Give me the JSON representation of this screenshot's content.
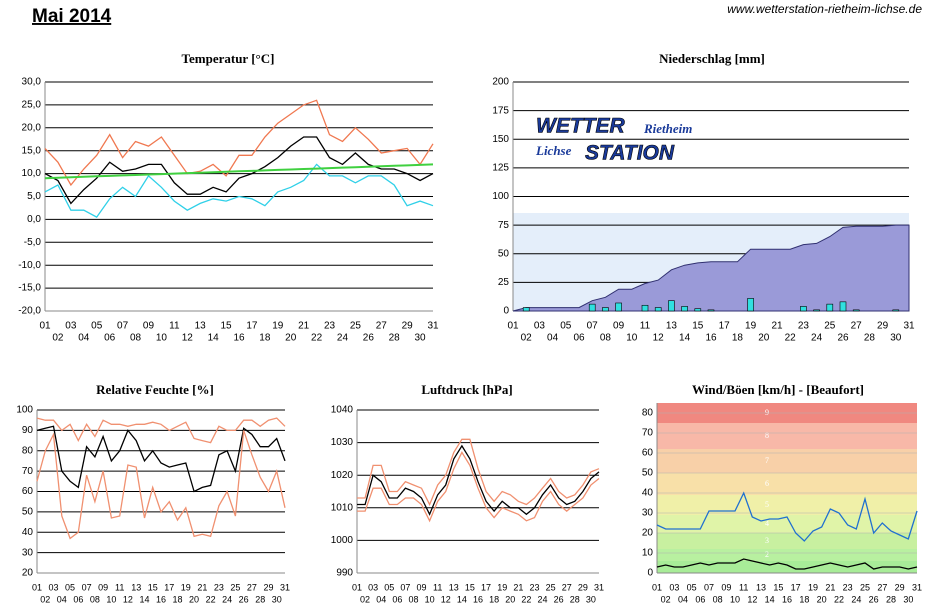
{
  "header": {
    "title": "Mai 2014",
    "url": "www.wetterstation-rietheim-lichse.de"
  },
  "logo": {
    "w1": "WETTER",
    "w2": "Rietheim",
    "w3": "Lichse",
    "w4": "STATION"
  },
  "chart_data": [
    {
      "type": "line",
      "title": "Temperatur [°C]",
      "categories": [
        "01",
        "02",
        "03",
        "04",
        "05",
        "06",
        "07",
        "08",
        "09",
        "10",
        "11",
        "12",
        "13",
        "14",
        "15",
        "16",
        "17",
        "18",
        "19",
        "20",
        "21",
        "22",
        "23",
        "24",
        "25",
        "26",
        "27",
        "28",
        "29",
        "30",
        "31"
      ],
      "ylim": [
        -20,
        30
      ],
      "yticks": [
        {
          "value": -20,
          "label": "-20,0"
        },
        {
          "value": -15,
          "label": "-15,0"
        },
        {
          "value": -10,
          "label": "-10,0"
        },
        {
          "value": -5,
          "label": "-5,0"
        },
        {
          "value": 0,
          "label": "0,0"
        },
        {
          "value": 5,
          "label": "5,0"
        },
        {
          "value": 10,
          "label": "10,0"
        },
        {
          "value": 15,
          "label": "15,0"
        },
        {
          "value": 20,
          "label": "20,0"
        },
        {
          "value": 25,
          "label": "25,0"
        },
        {
          "value": 30,
          "label": "30,0"
        }
      ],
      "grid": true,
      "series": [
        {
          "color": "#f07850",
          "values": [
            15.5,
            12.5,
            7.5,
            11,
            14,
            18.5,
            13.5,
            17,
            16,
            18,
            14,
            10,
            10.5,
            12,
            9.5,
            14,
            14,
            18,
            21,
            23,
            25,
            26,
            18.5,
            17,
            20,
            17.5,
            14.5,
            15,
            15.5,
            12,
            16.5
          ]
        },
        {
          "color": "#000000",
          "values": [
            10,
            8.5,
            3.5,
            6.5,
            9,
            12.5,
            10.5,
            11,
            12,
            12,
            8,
            5.5,
            5.5,
            7,
            6,
            9,
            10,
            11.5,
            13.5,
            16,
            18,
            18,
            13.5,
            12,
            14.5,
            12,
            11,
            11,
            10,
            8.5,
            10
          ]
        },
        {
          "color": "#30d0e8",
          "values": [
            6,
            7.5,
            2,
            2,
            0.5,
            4.5,
            7,
            5,
            9.5,
            7,
            4,
            2,
            3.5,
            4.5,
            4,
            5,
            4.5,
            3,
            6,
            7,
            8.5,
            12,
            9.5,
            9.5,
            8,
            9.5,
            9.5,
            7.5,
            3,
            4,
            3
          ]
        },
        {
          "color": "#40d040",
          "values": [
            9,
            9.1,
            9.2,
            9.3,
            9.4,
            9.5,
            9.6,
            9.7,
            9.8,
            9.9,
            10,
            10.1,
            10.2,
            10.3,
            10.4,
            10.5,
            10.6,
            10.7,
            10.8,
            10.9,
            11,
            11.1,
            11.2,
            11.3,
            11.4,
            11.5,
            11.6,
            11.7,
            11.8,
            11.9,
            12
          ]
        }
      ]
    },
    {
      "type": "bar",
      "title": "Niederschlag [mm]",
      "categories": [
        "01",
        "02",
        "03",
        "04",
        "05",
        "06",
        "07",
        "08",
        "09",
        "10",
        "11",
        "12",
        "13",
        "14",
        "15",
        "16",
        "17",
        "18",
        "19",
        "20",
        "21",
        "22",
        "23",
        "24",
        "25",
        "26",
        "27",
        "28",
        "29",
        "30",
        "31"
      ],
      "ylim": [
        0,
        200
      ],
      "yticks": [
        0,
        25,
        50,
        75,
        100,
        125,
        150,
        175,
        200
      ],
      "grid": true,
      "color": "#30e0e0",
      "area_color": "#9a9ad8",
      "values": [
        0,
        3,
        0,
        0,
        0,
        0,
        6,
        3,
        7,
        0,
        5,
        3,
        9,
        4,
        2,
        1,
        0,
        0,
        11,
        0,
        0,
        0,
        4,
        1,
        6,
        8,
        1,
        0,
        0,
        1,
        0
      ]
    },
    {
      "type": "line",
      "title": "Relative Feuchte [%]",
      "categories": [
        "01",
        "02",
        "03",
        "04",
        "05",
        "06",
        "07",
        "08",
        "09",
        "10",
        "11",
        "12",
        "13",
        "14",
        "15",
        "16",
        "17",
        "18",
        "19",
        "20",
        "21",
        "22",
        "23",
        "24",
        "25",
        "26",
        "27",
        "28",
        "29",
        "30",
        "31"
      ],
      "ylim": [
        20,
        100
      ],
      "yticks": [
        20,
        30,
        40,
        50,
        60,
        70,
        80,
        90,
        100
      ],
      "grid": true,
      "series": [
        {
          "color": "#000000",
          "values": [
            90,
            91,
            92,
            70,
            65,
            62,
            82,
            77,
            87,
            75,
            80,
            90,
            85,
            75,
            80,
            74,
            72,
            73,
            74,
            60,
            62,
            63,
            78,
            80,
            70,
            91,
            88,
            82,
            82,
            86,
            75
          ]
        },
        {
          "color": "#f09070",
          "values": [
            96,
            95,
            95,
            90,
            93,
            85,
            93,
            87,
            95,
            93,
            93,
            92,
            93,
            93,
            94,
            93,
            90,
            92,
            94,
            86,
            85,
            84,
            92,
            90,
            90,
            95,
            95,
            92,
            95,
            96,
            92
          ]
        },
        {
          "color": "#f09070",
          "values": [
            65,
            80,
            88,
            48,
            37,
            40,
            68,
            55,
            70,
            47,
            48,
            73,
            72,
            47,
            62,
            50,
            55,
            46,
            52,
            38,
            39,
            38,
            53,
            60,
            48,
            90,
            78,
            67,
            60,
            70,
            52
          ]
        }
      ]
    },
    {
      "type": "line",
      "title": "Luftdruck [hPa]",
      "categories": [
        "01",
        "02",
        "03",
        "04",
        "05",
        "06",
        "07",
        "08",
        "09",
        "10",
        "11",
        "12",
        "13",
        "14",
        "15",
        "16",
        "17",
        "18",
        "19",
        "20",
        "21",
        "22",
        "23",
        "24",
        "25",
        "26",
        "27",
        "28",
        "29",
        "30",
        "31"
      ],
      "ylim": [
        990,
        1040
      ],
      "yticks": [
        990,
        1000,
        1010,
        1020,
        1030,
        1040
      ],
      "grid": true,
      "series": [
        {
          "color": "#f09070",
          "values": [
            1013,
            1013,
            1023,
            1023,
            1015,
            1015,
            1018,
            1017,
            1016,
            1011,
            1017,
            1020,
            1027,
            1031,
            1031,
            1022,
            1015,
            1012,
            1015,
            1014,
            1012,
            1011,
            1013,
            1016,
            1019,
            1015,
            1013,
            1014,
            1017,
            1021,
            1022
          ]
        },
        {
          "color": "#f09070",
          "values": [
            1009,
            1009,
            1016,
            1016,
            1011,
            1011,
            1013,
            1013,
            1011,
            1006,
            1012,
            1015,
            1022,
            1027,
            1023,
            1016,
            1010,
            1007,
            1010,
            1009,
            1008,
            1006,
            1007,
            1012,
            1015,
            1011,
            1009,
            1011,
            1013,
            1017,
            1019
          ]
        },
        {
          "color": "#000000",
          "values": [
            1011,
            1011,
            1020,
            1018,
            1013,
            1013,
            1016,
            1015,
            1013,
            1008,
            1014,
            1017,
            1025,
            1029,
            1025,
            1018,
            1012,
            1009,
            1012,
            1010,
            1010,
            1008,
            1010,
            1014,
            1017,
            1013,
            1011,
            1012,
            1015,
            1019,
            1021
          ]
        }
      ]
    },
    {
      "type": "line",
      "title": "Wind/Böen [km/h] - [Beaufort]",
      "categories": [
        "01",
        "02",
        "03",
        "04",
        "05",
        "06",
        "07",
        "08",
        "09",
        "10",
        "11",
        "12",
        "13",
        "14",
        "15",
        "16",
        "17",
        "18",
        "19",
        "20",
        "21",
        "22",
        "23",
        "24",
        "25",
        "26",
        "27",
        "28",
        "29",
        "30",
        "31"
      ],
      "ylim": [
        0,
        85
      ],
      "yticks": [
        0,
        10,
        20,
        30,
        40,
        50,
        60,
        70,
        80
      ],
      "grid": true,
      "bands": [
        {
          "label": null,
          "from": 0,
          "to": 6,
          "color": "#a8ec98"
        },
        {
          "label": "2",
          "from": 6,
          "to": 12,
          "color": "#b8f0a0"
        },
        {
          "label": "3",
          "from": 12,
          "to": 20,
          "color": "#c8f0a0"
        },
        {
          "label": "4",
          "from": 20,
          "to": 29,
          "color": "#e0f4a8"
        },
        {
          "label": "5",
          "from": 29,
          "to": 39,
          "color": "#f0f0a8"
        },
        {
          "label": "6",
          "from": 39,
          "to": 50,
          "color": "#f8e0a8"
        },
        {
          "label": "7",
          "from": 50,
          "to": 62,
          "color": "#f8d0a8"
        },
        {
          "label": "8",
          "from": 62,
          "to": 75,
          "color": "#f8b8a8"
        },
        {
          "label": "9",
          "from": 75,
          "to": 85,
          "color": "#f08880"
        }
      ],
      "series": [
        {
          "color": "#2070d0",
          "values": [
            24,
            22,
            22,
            22,
            22,
            22,
            31,
            31,
            31,
            31,
            40,
            28,
            26,
            27,
            27,
            28,
            20,
            16,
            21,
            23,
            32,
            30,
            24,
            22,
            37,
            20,
            25,
            21,
            19,
            17,
            31
          ]
        },
        {
          "color": "#000000",
          "values": [
            3,
            4,
            3,
            3,
            4,
            5,
            4,
            5,
            5,
            5,
            7,
            6,
            5,
            4,
            5,
            4,
            2,
            2,
            3,
            4,
            5,
            4,
            3,
            4,
            5,
            2,
            3,
            3,
            3,
            2,
            3
          ]
        }
      ]
    }
  ]
}
